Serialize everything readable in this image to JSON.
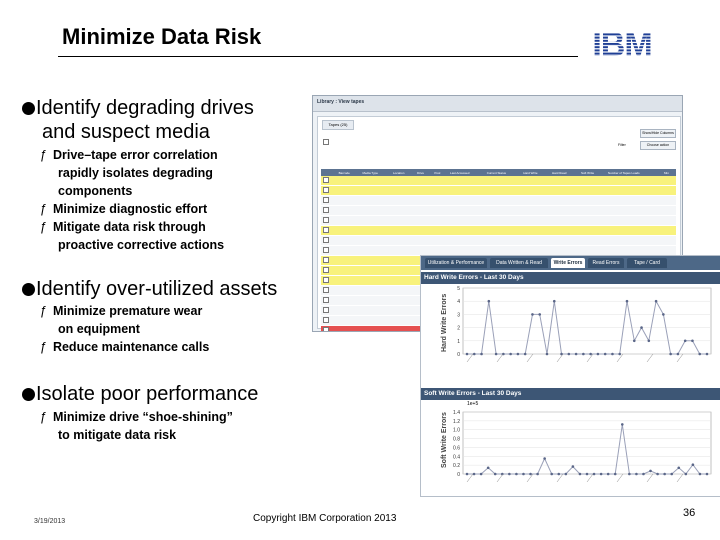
{
  "slide": {
    "title": "Minimize Data Risk",
    "brand": "IBM",
    "sections": [
      {
        "heading_line1": "Identify degrading drives",
        "heading_line2": "and suspect media",
        "items": [
          {
            "line1": "Drive–tape error correlation",
            "line2": "rapidly isolates degrading",
            "line3": "components"
          },
          {
            "line1": "Minimize diagnostic effort"
          },
          {
            "line1": "Mitigate data risk through",
            "line2": "proactive corrective actions"
          }
        ]
      },
      {
        "heading_line1": "Identify over-utilized assets",
        "items": [
          {
            "line1": "Minimize premature wear",
            "line2": "on equipment"
          },
          {
            "line1": "Reduce maintenance calls"
          }
        ]
      },
      {
        "heading_line1": "Isolate poor performance",
        "items": [
          {
            "line1": "Minimize drive “shoe-shining”",
            "line2": "to mitigate data risk"
          }
        ]
      }
    ],
    "bullet_mark": "ƒ",
    "footer": {
      "date": "3/19/2013",
      "copyright": "Copyright IBM Corporation 2013",
      "page": "36"
    }
  },
  "tape_screenshot": {
    "breadcrumb": "Library : View tapes",
    "tab": "Tapes (25)",
    "top_right_button": "Show/Hide Columns",
    "filter_button": "Choose action",
    "filter_label": "Filter",
    "columns": [
      "Barcode",
      "Media Type",
      "Location",
      "Drive",
      "Pool",
      "Last Accessed",
      "Current Status",
      "Hard Write",
      "Hard Read",
      "Soft Write",
      "Number of Tapes Loads",
      "Min"
    ],
    "row_colors": [
      "yellow",
      "yellow",
      "white",
      "white",
      "white",
      "yellow",
      "white",
      "white",
      "yellow",
      "yellow",
      "yellow",
      "white",
      "white",
      "white",
      "white",
      "red",
      "white",
      "white",
      "yellow",
      "yellow",
      "white"
    ]
  },
  "errors_screenshot": {
    "tabs": [
      "Utilization & Performance",
      "Data Written & Read",
      "Write Errors",
      "Read Errors",
      "Tape / Card"
    ],
    "active_tab": 2,
    "hard_chart": {
      "title": "Hard Write Errors - Last 30 Days",
      "ylabel": "Hard Write Errors",
      "yticks": [
        "0",
        "1",
        "2",
        "3",
        "4",
        "5"
      ]
    },
    "soft_chart": {
      "title": "Soft Write Errors - Last 30 Days",
      "ylabel": "Soft Write Errors",
      "scale_note": "1e+5",
      "yticks": [
        "0",
        "0.2",
        "0.4",
        "0.6",
        "0.8",
        "1.0",
        "1.2",
        "1.4"
      ]
    },
    "colors": {
      "line": "#9aa0b8",
      "point": "#5a6688",
      "tab_bar": "#4d6887"
    }
  }
}
